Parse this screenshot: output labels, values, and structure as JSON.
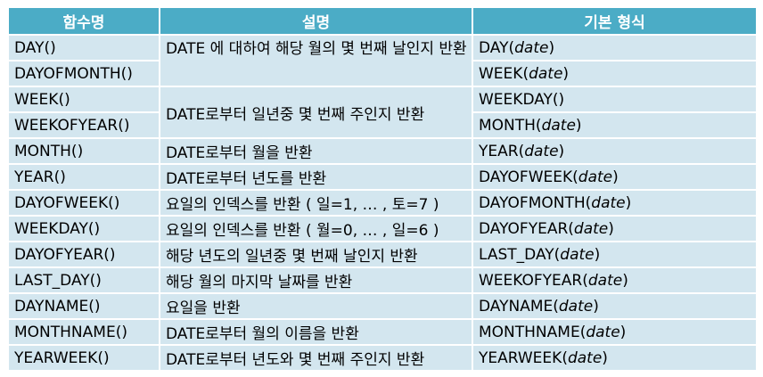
{
  "headers": {
    "name": "함수명",
    "description": "설명",
    "format": "기본 형식"
  },
  "rows": [
    {
      "name": "DAY()",
      "description": "DATE 에 대하여 해당 월의 몇 번째 날인지 반환",
      "format_func": "DAY(",
      "format_arg": "date",
      "format_close": ")"
    },
    {
      "name": "DAYOFMONTH()",
      "description": null,
      "format_func": "WEEK(",
      "format_arg": "date",
      "format_close": ")"
    },
    {
      "name": "WEEK()",
      "description": "DATE로부터 일년중 몇 번째 주인지 반환",
      "format_func": "WEEKDAY()",
      "format_arg": "",
      "format_close": ""
    },
    {
      "name": "WEEKOFYEAR()",
      "description": null,
      "format_func": "MONTH(",
      "format_arg": "date",
      "format_close": ")"
    },
    {
      "name": "MONTH()",
      "description": "DATE로부터 월을 반환",
      "format_func": "YEAR(",
      "format_arg": "date",
      "format_close": ")"
    },
    {
      "name": "YEAR()",
      "description": "DATE로부터 년도를 반환",
      "format_func": "DAYOFWEEK(",
      "format_arg": "date",
      "format_close": ")"
    },
    {
      "name": "DAYOFWEEK()",
      "description": "요일의 인덱스를 반환 ( 일=1, … , 토=7 )",
      "format_func": "DAYOFMONTH(",
      "format_arg": "date",
      "format_close": ")"
    },
    {
      "name": "WEEKDAY()",
      "description": "요일의 인덱스를 반환 ( 월=0, … , 일=6 )",
      "format_func": "DAYOFYEAR(",
      "format_arg": "date",
      "format_close": ")"
    },
    {
      "name": "DAYOFYEAR()",
      "description": "해당 년도의 일년중 몇 번째 날인지 반환",
      "format_func": "LAST_DAY(",
      "format_arg": "date",
      "format_close": ")"
    },
    {
      "name": "LAST_DAY()",
      "description": "해당 월의 마지막 날짜를 반환",
      "format_func": "WEEKOFYEAR(",
      "format_arg": "date",
      "format_close": ")"
    },
    {
      "name": "DAYNAME()",
      "description": "요일을 반환",
      "format_func": "DAYNAME(",
      "format_arg": "date",
      "format_close": ")"
    },
    {
      "name": "MONTHNAME()",
      "description": "DATE로부터 월의 이름을 반환",
      "format_func": "MONTHNAME(",
      "format_arg": "date",
      "format_close": ")"
    },
    {
      "name": "YEARWEEK()",
      "description": "DATE로부터 년도와 몇 번째 주인지 반환",
      "format_func": "YEARWEEK(",
      "format_arg": "date",
      "format_close": ")"
    }
  ],
  "colors": {
    "header_bg": "#4bacc6",
    "cell_bg": "#d3e6ef",
    "header_text": "#ffffff"
  }
}
